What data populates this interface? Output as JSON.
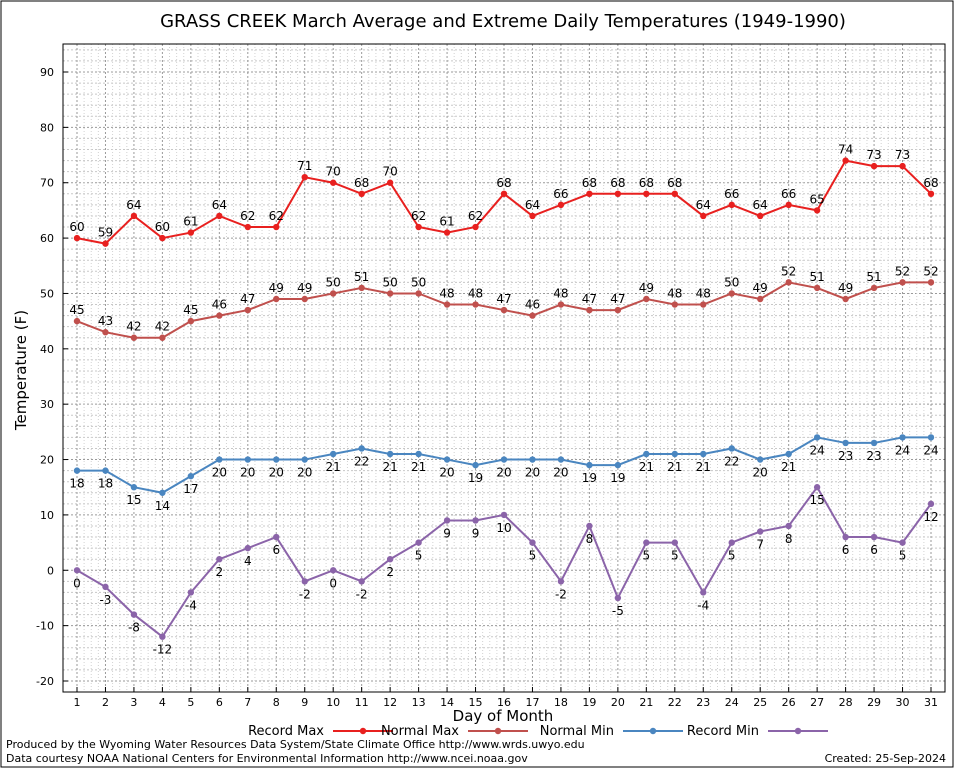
{
  "chart_data": {
    "type": "line",
    "title": "GRASS CREEK March Average and Extreme Daily Temperatures (1949-1990)",
    "xlabel": "Day of Month",
    "ylabel": "Temperature (F)",
    "ylim": [
      -20,
      90
    ],
    "yticks": [
      -20,
      -10,
      0,
      10,
      20,
      30,
      40,
      50,
      60,
      70,
      80,
      90
    ],
    "x": [
      1,
      2,
      3,
      4,
      5,
      6,
      7,
      8,
      9,
      10,
      11,
      12,
      13,
      14,
      15,
      16,
      17,
      18,
      19,
      20,
      21,
      22,
      23,
      24,
      25,
      26,
      27,
      28,
      29,
      30,
      31
    ],
    "grid": true,
    "legend_position": "bottom",
    "series": [
      {
        "name": "Record Max",
        "color": "#e8201f",
        "label_position": "above",
        "values": [
          60,
          59,
          64,
          60,
          61,
          64,
          62,
          62,
          71,
          70,
          68,
          70,
          62,
          61,
          62,
          68,
          64,
          66,
          68,
          68,
          68,
          68,
          64,
          66,
          64,
          66,
          65,
          74,
          73,
          73,
          68
        ]
      },
      {
        "name": "Normal Max",
        "color": "#c0504d",
        "label_position": "above",
        "values": [
          45,
          43,
          42,
          42,
          45,
          46,
          47,
          49,
          49,
          50,
          51,
          50,
          50,
          48,
          48,
          47,
          46,
          48,
          47,
          47,
          49,
          48,
          48,
          50,
          49,
          52,
          51,
          49,
          51,
          52,
          52
        ]
      },
      {
        "name": "Normal Min",
        "color": "#4a86c0",
        "label_position": "below",
        "values": [
          18,
          18,
          15,
          14,
          17,
          20,
          20,
          20,
          20,
          21,
          22,
          21,
          21,
          20,
          19,
          20,
          20,
          20,
          19,
          19,
          21,
          21,
          21,
          22,
          20,
          21,
          24,
          23,
          23,
          24,
          24
        ]
      },
      {
        "name": "Record Min",
        "color": "#8b64a9",
        "label_position": "below",
        "values": [
          0,
          -3,
          -8,
          -12,
          -4,
          2,
          4,
          6,
          -2,
          0,
          -2,
          2,
          5,
          9,
          9,
          10,
          5,
          -2,
          8,
          -5,
          5,
          5,
          -4,
          5,
          7,
          8,
          15,
          6,
          6,
          5,
          12
        ]
      }
    ]
  },
  "footer": {
    "left_line1": "Produced by the Wyoming Water Resources Data System/State Climate Office http://www.wrds.uwyo.edu",
    "left_line2": "Data courtesy NOAA National Centers for Environmental Information http://www.ncei.noaa.gov",
    "created": "Created:  25-Sep-2024"
  }
}
